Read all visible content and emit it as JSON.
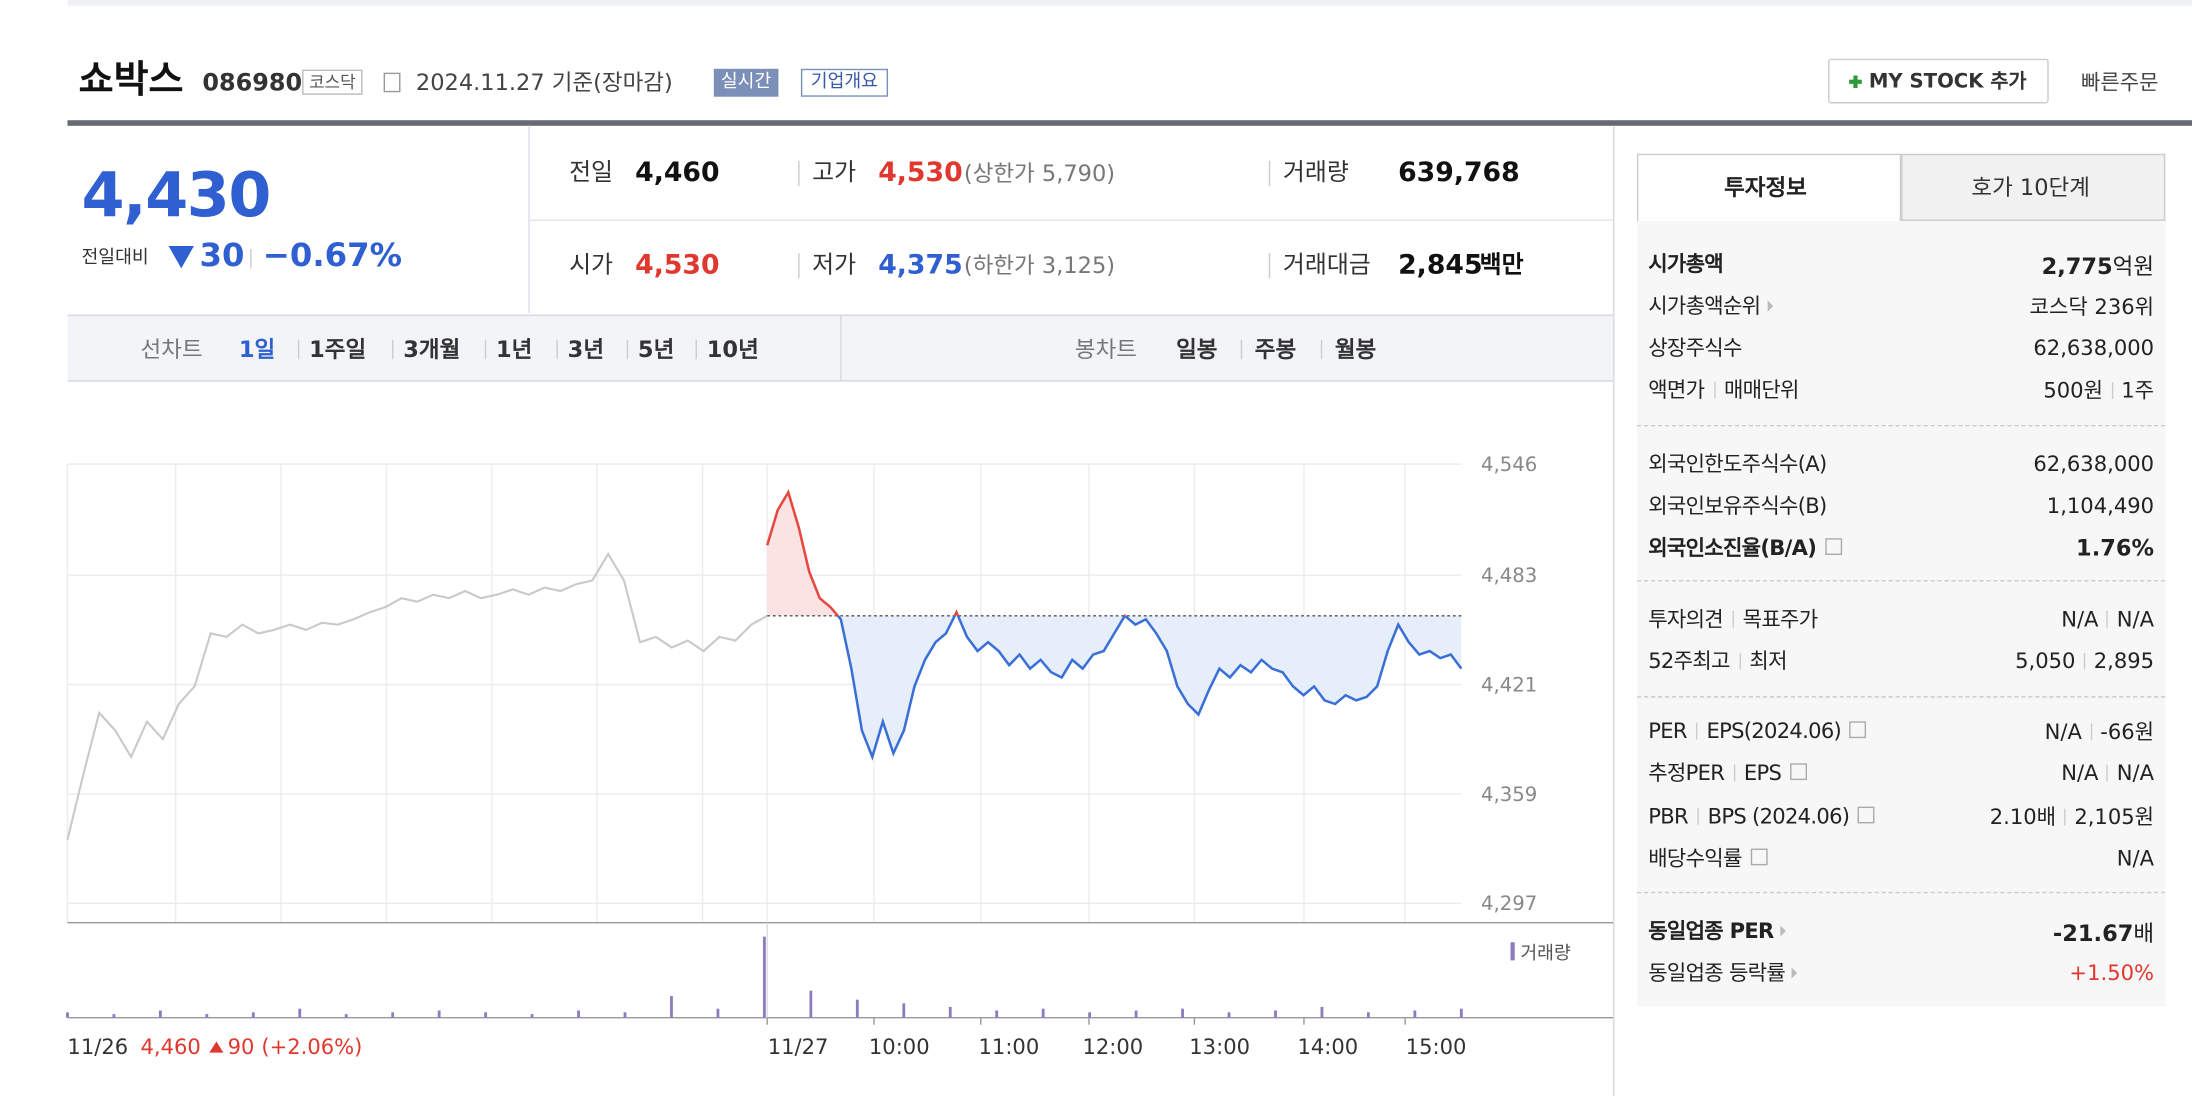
{
  "header": {
    "name": "쇼박스",
    "code": "086980",
    "market": "코스닥",
    "date": "2024.11.27 기준(장마감)",
    "realtime": "실시간",
    "overview": "기업개요",
    "mystock": "MY STOCK 추가",
    "quick_order": "빠른주문"
  },
  "price": {
    "current": "4,430",
    "change_label": "전일대비",
    "change": "30",
    "change_pct": "−0.67%"
  },
  "summary": [
    {
      "label": "전일",
      "value": "4,460"
    },
    {
      "label": "고가",
      "value": "4,530",
      "note": "(상한가 5,790)",
      "color": "#e0382e"
    },
    {
      "label": "거래량",
      "value": "639,768"
    },
    {
      "label": "시가",
      "value": "4,530",
      "color": "#e0382e"
    },
    {
      "label": "저가",
      "value": "4,375",
      "note": "(하한가 3,125)",
      "color": "#2f5fd0"
    },
    {
      "label": "거래대금",
      "value": "2,845",
      "unit": "백만"
    }
  ],
  "tabs": {
    "line": "선차트",
    "periods": [
      "1일",
      "1주일",
      "3개월",
      "1년",
      "3년",
      "5년",
      "10년"
    ],
    "candle": "봉차트",
    "candles": [
      "일봉",
      "주봉",
      "월봉"
    ]
  },
  "chart_data": {
    "type": "line",
    "ylim": [
      4286,
      4546
    ],
    "yticks": [
      {
        "value": 4546,
        "label": "4,546"
      },
      {
        "value": 4483,
        "label": "4,483"
      },
      {
        "value": 4421,
        "label": "4,421"
      },
      {
        "value": 4359,
        "label": "4,359"
      },
      {
        "value": 4297,
        "label": "4,297"
      }
    ],
    "grid": true,
    "x_labels": [
      "11/27",
      "10:00",
      "11:00",
      "12:00",
      "13:00",
      "14:00",
      "15:00"
    ],
    "baseline": 4460,
    "series": [
      {
        "color": "#c9c9c9",
        "values": [
          4333,
          4370,
          4405,
          4395,
          4380,
          4400,
          4390,
          4410,
          4420,
          4450,
          4448,
          4455,
          4450,
          4452,
          4455,
          4452,
          4456,
          4455,
          4458,
          4462,
          4465,
          4470,
          4468,
          4472,
          4470,
          4474,
          4470,
          4472,
          4475,
          4472,
          4476,
          4474,
          4478,
          4480,
          4495,
          4480,
          4445,
          4448,
          4442,
          4446,
          4440,
          4448,
          4446,
          4455,
          4460
        ]
      },
      {
        "color": "#3a6fd8",
        "up_color": "#e8473f",
        "values": [
          4500,
          4520,
          4530,
          4510,
          4485,
          4470,
          4465,
          4458,
          4430,
          4395,
          4380,
          4400,
          4382,
          4395,
          4420,
          4435,
          4445,
          4450,
          4462,
          4448,
          4440,
          4445,
          4440,
          4432,
          4438,
          4430,
          4435,
          4428,
          4425,
          4435,
          4430,
          4438,
          4440,
          4450,
          4460,
          4455,
          4458,
          4450,
          4440,
          4420,
          4410,
          4404,
          4418,
          4430,
          4425,
          4432,
          4428,
          4435,
          4430,
          4428,
          4420,
          4415,
          4420,
          4412,
          4410,
          4415,
          4412,
          4414,
          4420,
          4440,
          4455,
          4445,
          4438,
          4440,
          4436,
          4438,
          4430
        ]
      }
    ],
    "volume": {
      "label": "거래량",
      "color": "#8d7bbf",
      "values": [
        3,
        2,
        4,
        2,
        3,
        5,
        2,
        3,
        4,
        3,
        2,
        4,
        3,
        12,
        5,
        45,
        15,
        10,
        8,
        6,
        4,
        5,
        3,
        4,
        5,
        3,
        4,
        6,
        3,
        4,
        5
      ]
    },
    "prev_note": {
      "date": "11/26",
      "price": "4,460",
      "change": "90",
      "change_pct": "(+2.06%)"
    }
  },
  "invest": {
    "tabs": [
      "투자정보",
      "호가 10단계"
    ],
    "groups": [
      [
        {
          "label": [
            "시가총액"
          ],
          "value": [
            "2,775"
          ],
          "unit": "억원",
          "bold": true
        },
        {
          "label": [
            "시가총액순위"
          ],
          "icon": "arrow",
          "value": [
            "코스닥 236위"
          ]
        },
        {
          "label": [
            "상장주식수"
          ],
          "value": [
            "62,638,000"
          ]
        },
        {
          "label": [
            "액면가",
            "매매단위"
          ],
          "value": [
            "500원",
            "1주"
          ]
        }
      ],
      [
        {
          "label": [
            "외국인한도주식수(A)"
          ],
          "value": [
            "62,638,000"
          ]
        },
        {
          "label": [
            "외국인보유주식수(B)"
          ],
          "value": [
            "1,104,490"
          ]
        },
        {
          "label": [
            "외국인소진율(B/A)"
          ],
          "icon": "help",
          "value": [
            "1.76%"
          ],
          "bold": true
        }
      ],
      [
        {
          "label": [
            "투자의견",
            "목표주가"
          ],
          "value": [
            "N/A",
            "N/A"
          ]
        },
        {
          "label": [
            "52주최고",
            "최저"
          ],
          "value": [
            "5,050",
            "2,895"
          ]
        }
      ],
      [
        {
          "label": [
            "PER",
            "EPS(2024.06)"
          ],
          "icon": "help",
          "value": [
            "N/A",
            "-66원"
          ]
        },
        {
          "label": [
            "추정PER",
            "EPS"
          ],
          "icon": "help",
          "value": [
            "N/A",
            "N/A"
          ]
        },
        {
          "label": [
            "PBR",
            "BPS (2024.06)"
          ],
          "icon": "help",
          "value": [
            "2.10배",
            "2,105원"
          ]
        },
        {
          "label": [
            "배당수익률"
          ],
          "icon": "help",
          "value": [
            "N/A"
          ]
        }
      ],
      [
        {
          "label": [
            "동일업종 PER"
          ],
          "icon": "arrow",
          "value": [
            "-21.67"
          ],
          "unit": "배",
          "bold": true
        },
        {
          "label": [
            "동일업종 등락률"
          ],
          "icon": "arrow",
          "value": [
            "+1.50%"
          ],
          "color": "#e0382e"
        }
      ]
    ]
  }
}
